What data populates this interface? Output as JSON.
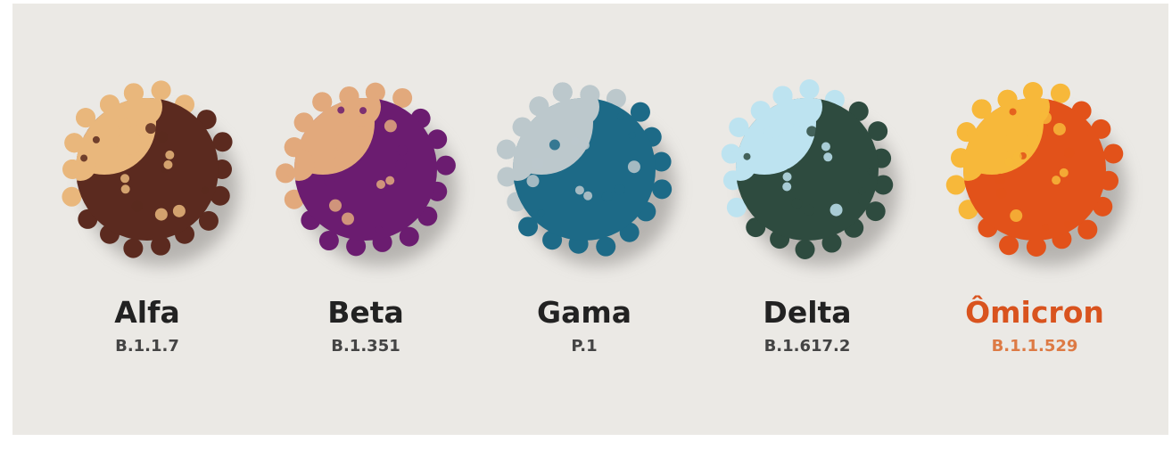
{
  "variants": [
    {
      "name": "Alfa",
      "lineage": "B.1.1.7"
    },
    {
      "name": "Beta",
      "lineage": "B.1.351"
    },
    {
      "name": "Gama",
      "lineage": "P.1"
    },
    {
      "name": "Delta",
      "lineage": "B.1.617.2"
    },
    {
      "name": "Ômicron",
      "lineage": "B.1.1.529"
    }
  ]
}
